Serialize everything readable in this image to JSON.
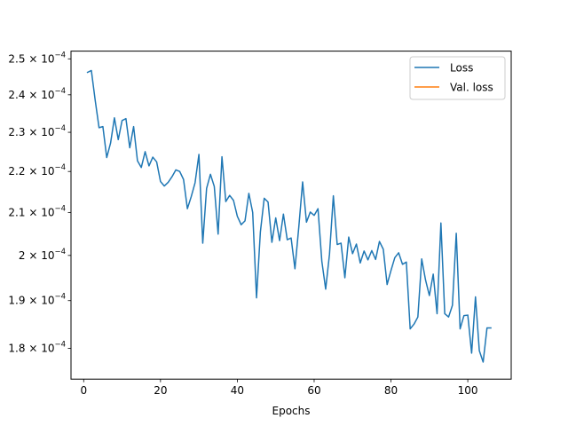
{
  "chart_data": {
    "type": "line",
    "xlabel": "Epochs",
    "ylabel": "",
    "title": "",
    "yscale": "log",
    "xlim": [
      -3.3,
      111.3
    ],
    "ylim": [
      0.0001738,
      0.0002522
    ],
    "xticks": [
      0,
      20,
      40,
      60,
      80,
      100
    ],
    "yticks": [
      {
        "value": 0.00018,
        "mantissa": "1.8"
      },
      {
        "value": 0.00019,
        "mantissa": "1.9"
      },
      {
        "value": 0.0002,
        "mantissa": "2"
      },
      {
        "value": 0.00021,
        "mantissa": "2.1"
      },
      {
        "value": 0.00022,
        "mantissa": "2.2"
      },
      {
        "value": 0.00023,
        "mantissa": "2.3"
      },
      {
        "value": 0.00024,
        "mantissa": "2.4"
      },
      {
        "value": 0.00025,
        "mantissa": "2.5"
      }
    ],
    "ytick_multiplier": "× 10",
    "ytick_exponent": "−4",
    "legend_position": "top-right",
    "grid": false,
    "series": [
      {
        "name": "Loss",
        "color": "#1f77b4",
        "x": [
          1,
          2,
          3,
          4,
          5,
          6,
          7,
          8,
          9,
          10,
          11,
          12,
          13,
          14,
          15,
          16,
          17,
          18,
          19,
          20,
          21,
          22,
          23,
          24,
          25,
          26,
          27,
          28,
          29,
          30,
          31,
          32,
          33,
          34,
          35,
          36,
          37,
          38,
          39,
          40,
          41,
          42,
          43,
          44,
          45,
          46,
          47,
          48,
          49,
          50,
          51,
          52,
          53,
          54,
          55,
          56,
          57,
          58,
          59,
          60,
          61,
          62,
          63,
          64,
          65,
          66,
          67,
          68,
          69,
          70,
          71,
          72,
          73,
          74,
          75,
          76,
          77,
          78,
          79,
          80,
          81,
          82,
          83,
          84,
          85,
          86,
          87,
          88,
          89,
          90,
          91,
          92,
          93,
          94,
          95,
          96,
          97,
          98,
          99,
          100,
          101,
          102,
          103,
          104,
          105,
          106
        ],
        "y": [
          0.0002462,
          0.0002467,
          0.0002385,
          0.0002312,
          0.0002315,
          0.0002235,
          0.0002272,
          0.0002338,
          0.0002281,
          0.0002331,
          0.0002336,
          0.000226,
          0.0002315,
          0.0002227,
          0.000221,
          0.000225,
          0.0002214,
          0.0002236,
          0.0002224,
          0.0002175,
          0.0002164,
          0.0002173,
          0.0002187,
          0.0002204,
          0.00022,
          0.000218,
          0.0002109,
          0.0002138,
          0.0002172,
          0.0002243,
          0.0002028,
          0.0002158,
          0.0002193,
          0.0002163,
          0.0002049,
          0.0002237,
          0.0002126,
          0.0002141,
          0.0002129,
          0.0002091,
          0.0002071,
          0.000208,
          0.0002146,
          0.00021,
          0.0001906,
          0.0002054,
          0.0002134,
          0.0002125,
          0.000203,
          0.0002087,
          0.0002034,
          0.0002096,
          0.0002036,
          0.000204,
          0.000197,
          0.0002065,
          0.0002174,
          0.0002077,
          0.0002101,
          0.0002093,
          0.0002109,
          0.0001987,
          0.0001925,
          0.0002003,
          0.000214,
          0.0002025,
          0.0002028,
          0.000195,
          0.0002042,
          0.0002004,
          0.0002026,
          0.0001983,
          0.000201,
          0.000199,
          0.0002011,
          0.0001991,
          0.0002032,
          0.0002014,
          0.0001935,
          0.0001966,
          0.0001995,
          0.0002006,
          0.000198,
          0.0001985,
          0.000184,
          0.000185,
          0.0001865,
          0.0001992,
          0.0001945,
          0.0001911,
          0.0001958,
          0.0001872,
          0.0002075,
          0.0001872,
          0.0001865,
          0.000189,
          0.0002051,
          0.000184,
          0.0001868,
          0.0001869,
          0.000179,
          0.0001908,
          0.0001795,
          0.0001772,
          0.0001842,
          0.0001842
        ]
      },
      {
        "name": "Val. loss",
        "color": "#ff7f0e",
        "x": [],
        "y": []
      }
    ]
  }
}
